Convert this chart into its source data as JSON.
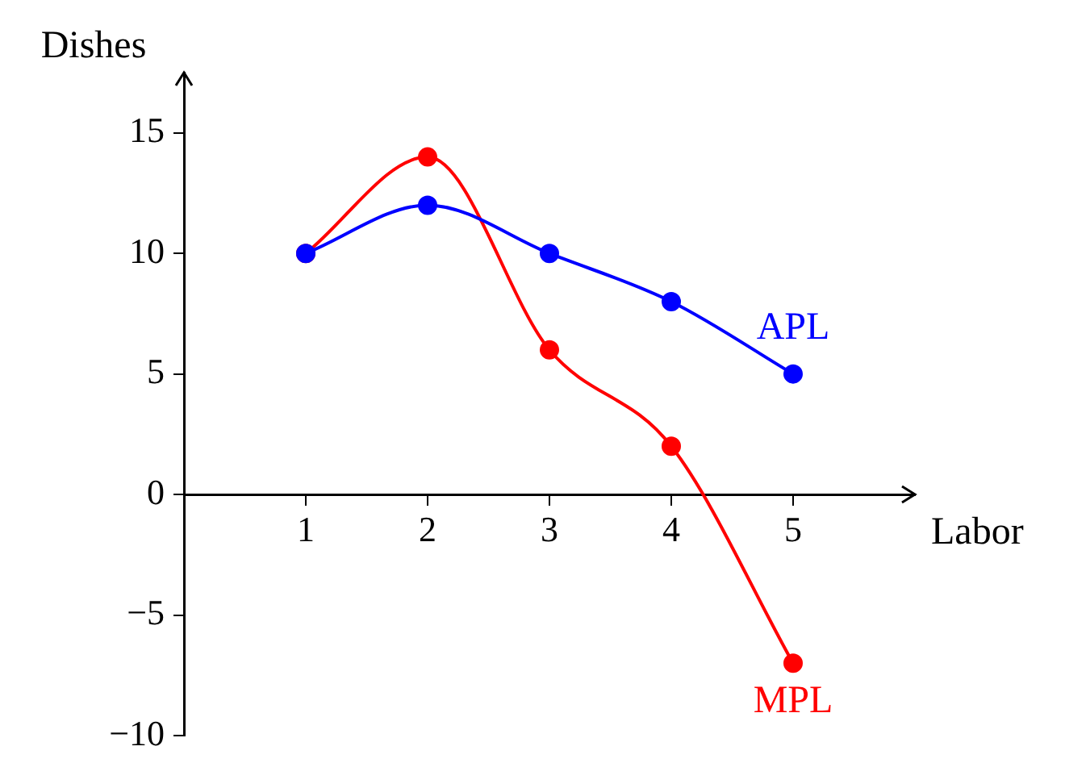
{
  "chart_data": {
    "type": "line",
    "xlabel": "Labor",
    "ylabel": "Dishes",
    "x": [
      1,
      2,
      3,
      4,
      5
    ],
    "xlim": [
      0,
      6
    ],
    "xticks": [
      1,
      2,
      3,
      4,
      5
    ],
    "ylim": [
      -10,
      17.5
    ],
    "yticks": [
      -10,
      -5,
      0,
      5,
      10,
      15
    ],
    "grid": false,
    "legend": false,
    "marker": "circle",
    "line_style": "solid",
    "series": [
      {
        "name": "APL",
        "color": "#0000ff",
        "values": [
          10,
          12,
          10,
          8,
          5
        ]
      },
      {
        "name": "MPL",
        "color": "#ff0000",
        "values": [
          10,
          14,
          6,
          2,
          -7
        ]
      }
    ]
  }
}
